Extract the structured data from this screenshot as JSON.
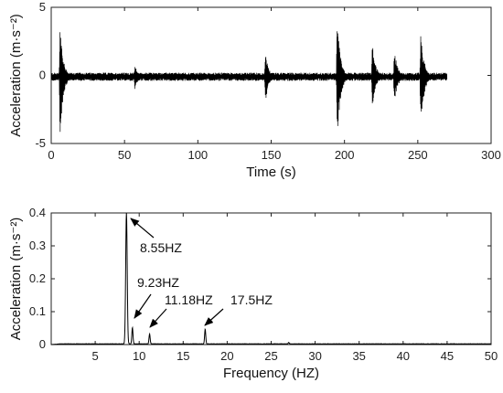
{
  "chart_data": [
    {
      "type": "line",
      "xlabel": "Time (s)",
      "ylabel": "Acceleration (m·s⁻²)",
      "xlim": [
        0,
        300
      ],
      "ylim": [
        -5,
        5
      ],
      "xticks": [
        0,
        50,
        100,
        150,
        200,
        250,
        300
      ],
      "yticks": [
        -5,
        0,
        5
      ],
      "series": [
        {
          "baseline": -0.1,
          "noise_amplitude": 0.3,
          "record_range": [
            0,
            270
          ],
          "bursts": [
            {
              "t": 6,
              "peak_up": 3.7,
              "peak_down": -4.5
            },
            {
              "t": 57,
              "peak_up": 0.8,
              "peak_down": -1.0
            },
            {
              "t": 146,
              "peak_up": 1.8,
              "peak_down": -2.2
            },
            {
              "t": 195,
              "peak_up": 4.3,
              "peak_down": -5.0
            },
            {
              "t": 219,
              "peak_up": 2.4,
              "peak_down": -2.4
            },
            {
              "t": 234,
              "peak_up": 2.0,
              "peak_down": -2.2
            },
            {
              "t": 252,
              "peak_up": 3.5,
              "peak_down": -4.1
            }
          ]
        }
      ]
    },
    {
      "type": "line",
      "xlabel": "Frequency (HZ)",
      "ylabel": "Acceleration (m·s⁻²)",
      "xlim": [
        0,
        50
      ],
      "ylim": [
        0,
        0.4
      ],
      "xticks": [
        5,
        10,
        15,
        20,
        25,
        30,
        35,
        40,
        45,
        50
      ],
      "yticks": [
        0,
        0.1,
        0.2,
        0.3,
        0.4
      ],
      "series": [
        {
          "peaks": [
            {
              "f": 8.55,
              "amp": 0.4
            },
            {
              "f": 9.23,
              "amp": 0.05
            },
            {
              "f": 11.18,
              "amp": 0.03
            },
            {
              "f": 17.5,
              "amp": 0.045
            },
            {
              "f": 27.0,
              "amp": 0.004
            }
          ]
        }
      ],
      "annotations": [
        {
          "text": "8.55HZ",
          "f": 8.55
        },
        {
          "text": "9.23HZ",
          "f": 9.23
        },
        {
          "text": "11.18HZ",
          "f": 11.18
        },
        {
          "text": "17.5HZ",
          "f": 17.5
        }
      ]
    }
  ]
}
